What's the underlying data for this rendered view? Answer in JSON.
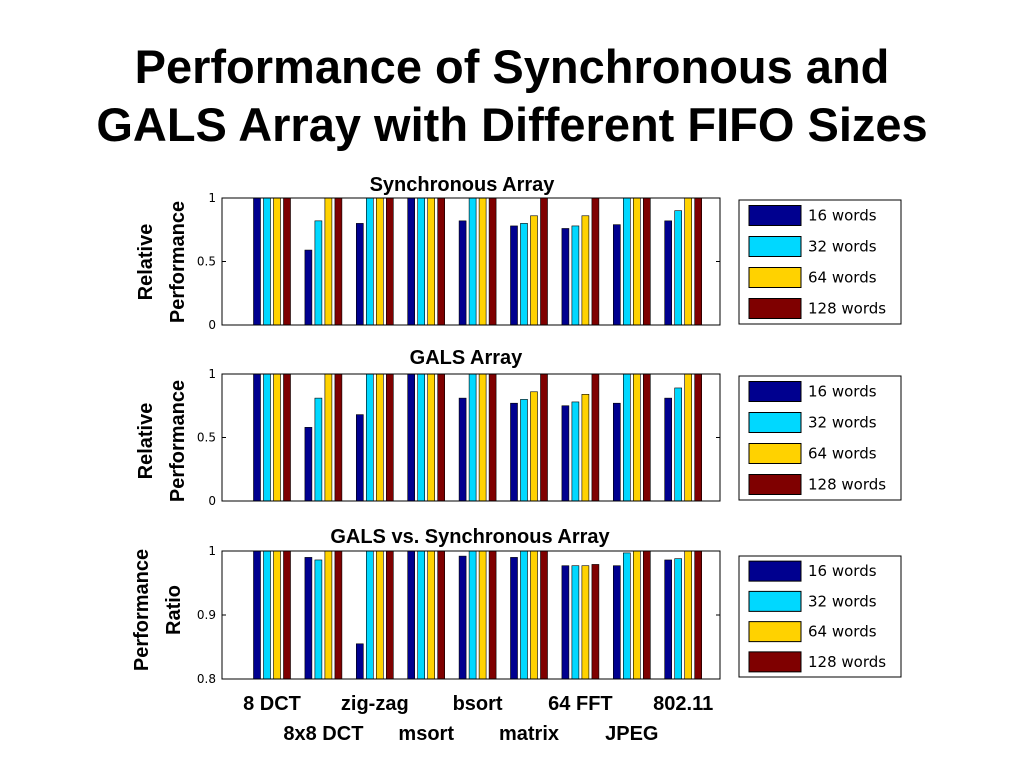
{
  "slide": {
    "title_line1": "Performance of Synchronous and",
    "title_line2": "GALS Array with Different FIFO Sizes"
  },
  "colors": {
    "16 words": "#00008f",
    "32 words": "#00d8ff",
    "64 words": "#ffd200",
    "128 words": "#7f0000"
  },
  "chart_data": [
    {
      "type": "bar",
      "title": "Synchronous Array",
      "ylabel": [
        "Relative",
        "Performance"
      ],
      "ylim": [
        0,
        1
      ],
      "yticks": [
        "0",
        "0.5",
        "1"
      ],
      "categories": [
        "8 DCT",
        "8x8 DCT",
        "zig-zag",
        "msort",
        "bsort",
        "matrix",
        "64 FFT",
        "JPEG",
        "802.11"
      ],
      "legend_position": "right",
      "series": [
        {
          "name": "16 words",
          "values": [
            1.0,
            0.59,
            0.8,
            1.0,
            0.82,
            0.78,
            0.76,
            0.79,
            0.82
          ]
        },
        {
          "name": "32 words",
          "values": [
            1.0,
            0.82,
            1.0,
            1.0,
            1.0,
            0.8,
            0.78,
            1.0,
            0.9
          ]
        },
        {
          "name": "64 words",
          "values": [
            1.0,
            1.0,
            1.0,
            1.0,
            1.0,
            0.86,
            0.86,
            1.0,
            1.0
          ]
        },
        {
          "name": "128 words",
          "values": [
            1.0,
            1.0,
            1.0,
            1.0,
            1.0,
            1.0,
            1.0,
            1.0,
            1.0
          ]
        }
      ]
    },
    {
      "type": "bar",
      "title": "GALS Array",
      "ylabel": [
        "Relative",
        "Performance"
      ],
      "ylim": [
        0,
        1
      ],
      "yticks": [
        "0",
        "0.5",
        "1"
      ],
      "categories": [
        "8 DCT",
        "8x8 DCT",
        "zig-zag",
        "msort",
        "bsort",
        "matrix",
        "64 FFT",
        "JPEG",
        "802.11"
      ],
      "legend_position": "right",
      "series": [
        {
          "name": "16 words",
          "values": [
            1.0,
            0.58,
            0.68,
            1.0,
            0.81,
            0.77,
            0.75,
            0.77,
            0.81
          ]
        },
        {
          "name": "32 words",
          "values": [
            1.0,
            0.81,
            1.0,
            1.0,
            1.0,
            0.8,
            0.78,
            1.0,
            0.89
          ]
        },
        {
          "name": "64 words",
          "values": [
            1.0,
            1.0,
            1.0,
            1.0,
            1.0,
            0.86,
            0.84,
            1.0,
            1.0
          ]
        },
        {
          "name": "128 words",
          "values": [
            1.0,
            1.0,
            1.0,
            1.0,
            1.0,
            1.0,
            1.0,
            1.0,
            1.0
          ]
        }
      ]
    },
    {
      "type": "bar",
      "title": "GALS vs. Synchronous Array",
      "ylabel": [
        "Performance",
        "Ratio"
      ],
      "ylim": [
        0.8,
        1
      ],
      "yticks": [
        "0.8",
        "0.9",
        "1"
      ],
      "categories": [
        "8 DCT",
        "8x8 DCT",
        "zig-zag",
        "msort",
        "bsort",
        "matrix",
        "64 FFT",
        "JPEG",
        "802.11"
      ],
      "legend_position": "right",
      "series": [
        {
          "name": "16 words",
          "values": [
            1.0,
            0.99,
            0.855,
            1.0,
            0.992,
            0.99,
            0.977,
            0.977,
            0.986
          ]
        },
        {
          "name": "32 words",
          "values": [
            1.0,
            0.986,
            1.0,
            1.0,
            1.0,
            1.0,
            0.977,
            0.997,
            0.988
          ]
        },
        {
          "name": "64 words",
          "values": [
            1.0,
            1.0,
            1.0,
            1.0,
            1.0,
            1.0,
            0.977,
            1.0,
            1.0
          ]
        },
        {
          "name": "128 words",
          "values": [
            1.0,
            1.0,
            1.0,
            1.0,
            1.0,
            1.0,
            0.979,
            1.0,
            1.0
          ]
        }
      ]
    }
  ]
}
